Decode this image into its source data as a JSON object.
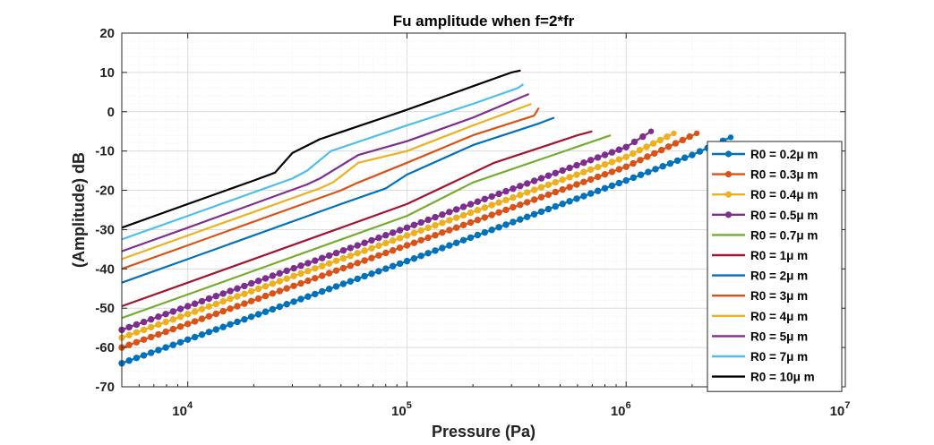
{
  "chart_data": {
    "type": "line",
    "title": "Fu amplitude when f=2*fr",
    "xlabel": "Pressure (Pa)",
    "ylabel": "(Amplitude) dB",
    "xscale": "log",
    "xlim": [
      5000,
      10000000
    ],
    "ylim": [
      -70,
      20
    ],
    "x_ticks": [
      {
        "value": 10000,
        "base": "10",
        "exp": "4"
      },
      {
        "value": 100000,
        "base": "10",
        "exp": "5"
      },
      {
        "value": 1000000,
        "base": "10",
        "exp": "6"
      },
      {
        "value": 10000000,
        "base": "10",
        "exp": "7"
      }
    ],
    "y_ticks": [
      20,
      10,
      0,
      -10,
      -20,
      -30,
      -40,
      -50,
      -60,
      -70
    ],
    "grid": true,
    "legend_position": "right",
    "series": [
      {
        "name": "R0 = 0.2μ m",
        "color": "#0072BD",
        "marker": "circle",
        "x": [
          5000,
          10000,
          100000,
          1000000,
          2000000,
          3000000
        ],
        "y": [
          -64,
          -58,
          -38,
          -17.5,
          -11,
          -6.5
        ]
      },
      {
        "name": "R0 = 0.3μ m",
        "color": "#D95319",
        "marker": "circle",
        "x": [
          5000,
          10000,
          100000,
          1000000,
          2100000
        ],
        "y": [
          -60,
          -54,
          -34,
          -14,
          -5.5
        ]
      },
      {
        "name": "R0 = 0.4μ m",
        "color": "#EDB120",
        "marker": "circle",
        "x": [
          5000,
          10000,
          100000,
          1000000,
          1650000
        ],
        "y": [
          -57.5,
          -51.5,
          -31.5,
          -11.5,
          -5.5
        ]
      },
      {
        "name": "R0 = 0.5μ m",
        "color": "#7E2F8E",
        "marker": "circle",
        "x": [
          5000,
          10000,
          100000,
          1000000,
          1300000
        ],
        "y": [
          -55.5,
          -49.5,
          -29.5,
          -9,
          -5
        ]
      },
      {
        "name": "R0 = 0.7μ m",
        "color": "#77AC30",
        "marker": "none",
        "x": [
          5000,
          10000,
          100000,
          200000,
          850000
        ],
        "y": [
          -52.5,
          -46.5,
          -26.5,
          -18,
          -6
        ]
      },
      {
        "name": "R0 = 1μ m",
        "color": "#A2142F",
        "marker": "none",
        "x": [
          5000,
          10000,
          100000,
          250000,
          600000,
          700000
        ],
        "y": [
          -49.5,
          -43.5,
          -23.5,
          -13,
          -6,
          -5
        ]
      },
      {
        "name": "R0 = 2μ m",
        "color": "#0072BD",
        "marker": "none",
        "x": [
          5000,
          10000,
          50000,
          80000,
          100000,
          200000,
          400000,
          470000
        ],
        "y": [
          -43.5,
          -37.5,
          -23.5,
          -19.5,
          -16,
          -8.5,
          -3,
          -1.5
        ]
      },
      {
        "name": "R0 = 3μ m",
        "color": "#D95319",
        "marker": "none",
        "x": [
          5000,
          10000,
          50000,
          60000,
          100000,
          200000,
          380000,
          400000
        ],
        "y": [
          -40,
          -34,
          -20,
          -18,
          -13,
          -6,
          -1,
          1
        ]
      },
      {
        "name": "R0 = 4μ m",
        "color": "#EDB120",
        "marker": "none",
        "x": [
          5000,
          10000,
          40000,
          46000,
          60000,
          100000,
          200000,
          370000
        ],
        "y": [
          -37.5,
          -31.5,
          -19.5,
          -18,
          -13,
          -10,
          -3.5,
          2
        ]
      },
      {
        "name": "R0 = 5μ m",
        "color": "#7E2F8E",
        "marker": "none",
        "x": [
          5000,
          10000,
          35000,
          40000,
          60000,
          100000,
          200000,
          360000
        ],
        "y": [
          -35.5,
          -29.5,
          -18.5,
          -17,
          -11,
          -7.5,
          -1.5,
          4.5
        ]
      },
      {
        "name": "R0 = 7μ m",
        "color": "#4DBEEE",
        "marker": "none",
        "x": [
          5000,
          10000,
          30000,
          35000,
          45000,
          100000,
          200000,
          320000,
          340000
        ],
        "y": [
          -32.5,
          -26.5,
          -17,
          -15,
          -10,
          -3.5,
          2,
          6,
          7
        ]
      },
      {
        "name": "R0 = 10μ m",
        "color": "#000000",
        "marker": "none",
        "x": [
          5000,
          10000,
          20000,
          25000,
          30000,
          40000,
          100000,
          200000,
          300000,
          330000
        ],
        "y": [
          -29.5,
          -23.5,
          -17.5,
          -15.5,
          -10.5,
          -7,
          0.5,
          6.5,
          10,
          10.5
        ]
      }
    ]
  }
}
